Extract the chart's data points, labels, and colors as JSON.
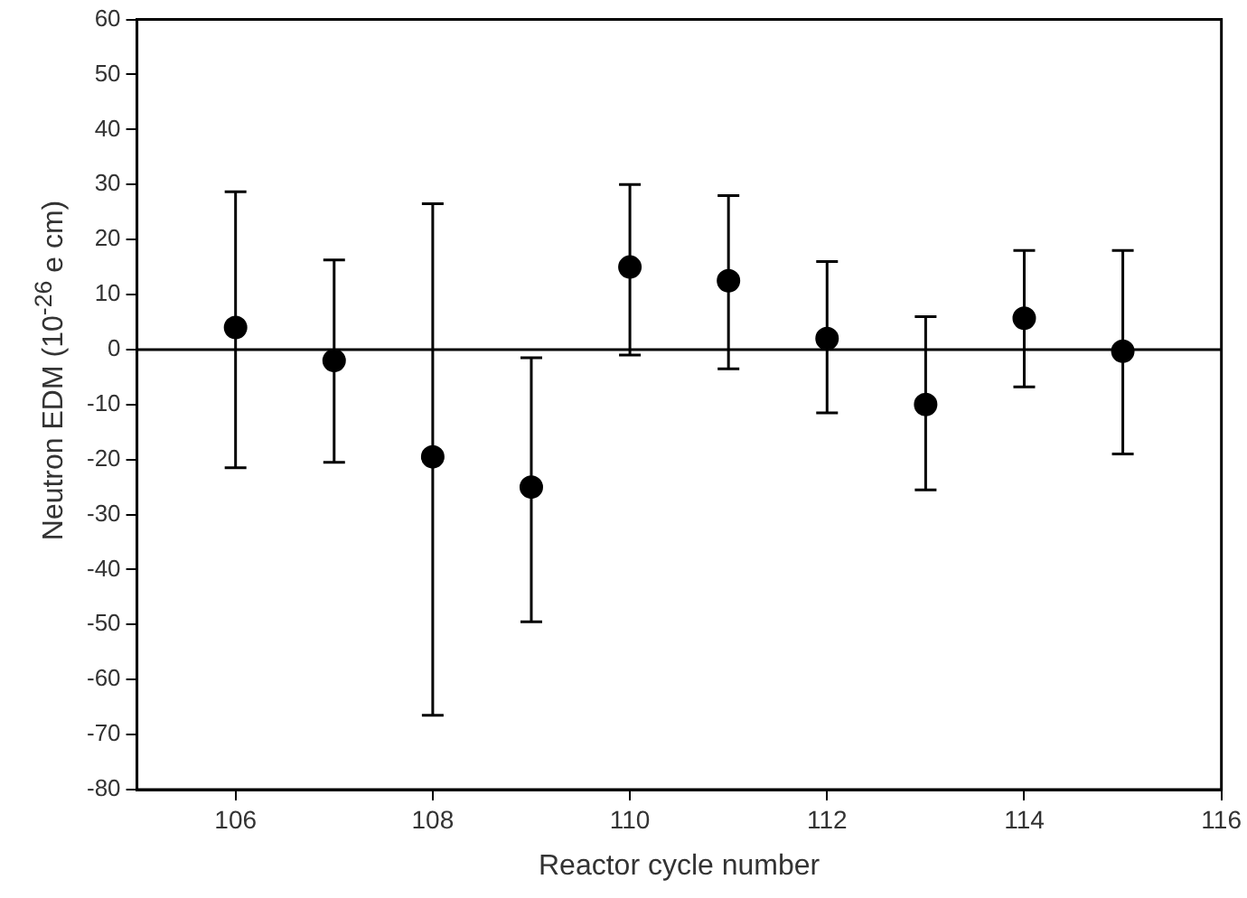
{
  "chart_data": {
    "type": "scatter",
    "xlabel": "Reactor cycle number",
    "ylabel": "Neutron EDM (10$^{-26}$ e cm)",
    "x": [
      106,
      107,
      108,
      109,
      110,
      111,
      112,
      113,
      114,
      115
    ],
    "series": [
      {
        "color": "#000000",
        "values": [
          4,
          -2,
          -19.5,
          -25,
          15,
          12.5,
          2,
          -10,
          5.7,
          -0.3
        ],
        "errors": [
          [
            -21.5,
            28.7
          ],
          [
            -20.5,
            16.3
          ],
          [
            -66.5,
            26.5
          ],
          [
            -49.5,
            -1.5
          ],
          [
            -1,
            30
          ],
          [
            -3.5,
            28
          ],
          [
            -11.5,
            16
          ],
          [
            -25.5,
            6
          ],
          [
            -6.8,
            18
          ],
          [
            -19,
            18
          ]
        ]
      }
    ],
    "xlim": [
      105,
      116
    ],
    "xticks": [
      106,
      108,
      110,
      112,
      114,
      116
    ],
    "ylim": [
      -80,
      60
    ],
    "yticks": [
      -80,
      -70,
      -60,
      -50,
      -40,
      -30,
      -20,
      -10,
      0,
      10,
      20,
      30,
      40,
      50,
      60
    ],
    "ref_lines": [
      {
        "axis": "y",
        "value": 0,
        "color": "#000000"
      }
    ],
    "marker": "circle",
    "grid": false,
    "legend": false
  }
}
